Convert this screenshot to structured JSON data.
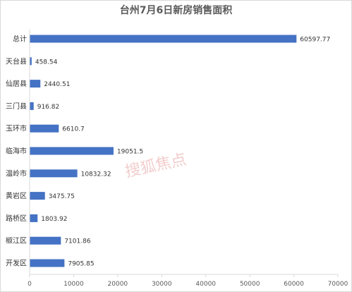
{
  "chart_data": {
    "type": "bar",
    "orientation": "horizontal",
    "title": "台州7月6日新房销售面积",
    "categories": [
      "总计",
      "天台县",
      "仙居县",
      "三门县",
      "玉环市",
      "临海市",
      "温岭市",
      "黄岩区",
      "路桥区",
      "椒江区",
      "开发区"
    ],
    "values": [
      60597.77,
      458.54,
      2440.51,
      916.82,
      6610.7,
      19051.5,
      10832.32,
      3475.75,
      1803.92,
      7101.86,
      7905.85
    ],
    "value_labels": [
      "60597.77",
      "458.54",
      "2440.51",
      "916.82",
      "6610.7",
      "19051.5",
      "10832.32",
      "3475.75",
      "1803.92",
      "7101.86",
      "7905.85"
    ],
    "xlim": [
      0,
      70000
    ],
    "xticks": [
      0,
      10000,
      20000,
      30000,
      40000,
      50000,
      60000,
      70000
    ],
    "xtick_labels": [
      "0",
      "10000",
      "20000",
      "30000",
      "40000",
      "50000",
      "60000",
      "70000"
    ],
    "grid": false,
    "legend": "none",
    "bar_color": "#4472c4",
    "xlabel": "",
    "ylabel": ""
  },
  "watermark": {
    "text": "搜狐焦点",
    "color": "#e28a8a"
  }
}
